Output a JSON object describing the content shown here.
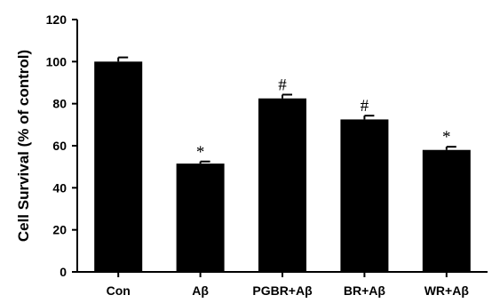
{
  "chart_data": {
    "type": "bar",
    "title": "",
    "xlabel": "",
    "ylabel": "Cell Survival (% of control)",
    "ylim": [
      0,
      120
    ],
    "yticks": [
      0,
      20,
      40,
      60,
      80,
      100,
      120
    ],
    "categories": [
      "Con",
      "Aβ",
      "PGBR+Aβ",
      "BR+Aβ",
      "WR+Aβ"
    ],
    "values": [
      100,
      51.5,
      82.5,
      72.5,
      58
    ],
    "error": [
      2,
      1,
      1.8,
      1.8,
      1.5
    ],
    "annotations": [
      "",
      "*",
      "#",
      "#",
      "*"
    ],
    "bar_color": "#000000",
    "grid": false,
    "legend": "none"
  }
}
